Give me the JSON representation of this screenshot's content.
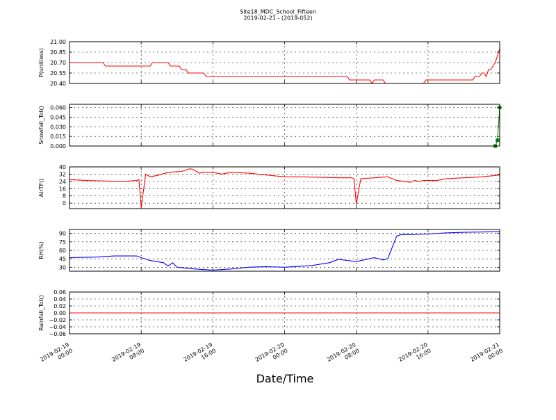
{
  "figure": {
    "title_line1": "Site18_MDC_School_Fifteen",
    "title_line2": "2019-02-21 - (2019-052)",
    "xlabel": "Date/Time",
    "xticks": [
      {
        "t": 0,
        "line1": "2019-02-19",
        "line2": "00:00"
      },
      {
        "t": 8,
        "line1": "2019-02-19",
        "line2": "08:00"
      },
      {
        "t": 16,
        "line1": "2019-02-19",
        "line2": "16:00"
      },
      {
        "t": 24,
        "line1": "2019-02-20",
        "line2": "00:00"
      },
      {
        "t": 32,
        "line1": "2019-02-20",
        "line2": "08:00"
      },
      {
        "t": 40,
        "line1": "2019-02-20",
        "line2": "16:00"
      },
      {
        "t": 48,
        "line1": "2019-02-21",
        "line2": "00:00"
      }
    ]
  },
  "chart_data": [
    {
      "type": "line",
      "ylabel": "P(unitless)",
      "ylim": [
        20.4,
        21.0
      ],
      "yticks": [
        "20.40",
        "20.55",
        "20.70",
        "20.85",
        "21.00"
      ],
      "grid": true,
      "series": [
        {
          "color": "#ff0000",
          "x": [
            "2019-02-19 00:00",
            "2019-02-19 03:45",
            "2019-02-19 04:00",
            "2019-02-19 09:00",
            "2019-02-19 09:15",
            "2019-02-19 11:00",
            "2019-02-19 11:15",
            "2019-02-19 12:15",
            "2019-02-19 12:30",
            "2019-02-19 13:00",
            "2019-02-19 13:15",
            "2019-02-19 15:00",
            "2019-02-19 15:15",
            "2019-02-20 07:00",
            "2019-02-20 07:15",
            "2019-02-20 09:30",
            "2019-02-20 09:45",
            "2019-02-20 10:00",
            "2019-02-20 11:00",
            "2019-02-20 11:15",
            "2019-02-20 15:30",
            "2019-02-20 15:45",
            "2019-02-20 21:00",
            "2019-02-20 21:15",
            "2019-02-20 21:45",
            "2019-02-20 22:00",
            "2019-02-20 22:15",
            "2019-02-20 22:30",
            "2019-02-20 22:45",
            "2019-02-20 23:00",
            "2019-02-20 23:30",
            "2019-02-21 00:00"
          ],
          "y": [
            20.7,
            20.7,
            20.65,
            20.65,
            20.7,
            20.7,
            20.65,
            20.65,
            20.6,
            20.6,
            20.55,
            20.55,
            20.5,
            20.5,
            20.45,
            20.45,
            20.4,
            20.45,
            20.45,
            20.4,
            20.4,
            20.45,
            20.45,
            20.5,
            20.5,
            20.55,
            20.55,
            20.5,
            20.6,
            20.6,
            20.7,
            20.9
          ]
        }
      ]
    },
    {
      "type": "line",
      "ylabel": "Snowfall_Tot()",
      "ylim": [
        0.0,
        0.065
      ],
      "yticks": [
        "0.000",
        "0.015",
        "0.030",
        "0.045",
        "0.060"
      ],
      "grid": true,
      "series": [
        {
          "color": "#008000",
          "marker": "square",
          "x": [
            "2019-02-19 00:00",
            "2019-02-20 23:30",
            "2019-02-20 23:45",
            "2019-02-21 00:00"
          ],
          "y": [
            0.0,
            0.0,
            0.009,
            0.06
          ]
        }
      ]
    },
    {
      "type": "line",
      "ylabel": "AirTF()",
      "ylim": [
        -6,
        40
      ],
      "yticks": [
        "0",
        "8",
        "16",
        "24",
        "32",
        "40"
      ],
      "grid": true,
      "series": [
        {
          "color": "#ff0000",
          "x": [
            "2019-02-19 00:00",
            "2019-02-19 02:00",
            "2019-02-19 06:00",
            "2019-02-19 07:30",
            "2019-02-19 07:45",
            "2019-02-19 08:00",
            "2019-02-19 08:30",
            "2019-02-19 09:00",
            "2019-02-19 10:00",
            "2019-02-19 11:00",
            "2019-02-19 12:30",
            "2019-02-19 13:30",
            "2019-02-19 14:00",
            "2019-02-19 14:30",
            "2019-02-19 15:00",
            "2019-02-19 16:00",
            "2019-02-19 17:00",
            "2019-02-19 18:00",
            "2019-02-19 20:00",
            "2019-02-19 22:00",
            "2019-02-20 00:00",
            "2019-02-20 02:00",
            "2019-02-20 06:00",
            "2019-02-20 07:30",
            "2019-02-20 07:45",
            "2019-02-20 08:00",
            "2019-02-20 08:30",
            "2019-02-20 10:00",
            "2019-02-20 11:30",
            "2019-02-20 12:30",
            "2019-02-20 13:30",
            "2019-02-20 14:00",
            "2019-02-20 14:30",
            "2019-02-20 15:00",
            "2019-02-20 15:30",
            "2019-02-20 16:00",
            "2019-02-20 17:00",
            "2019-02-20 18:00",
            "2019-02-20 20:00",
            "2019-02-20 22:00",
            "2019-02-21 00:00"
          ],
          "y": [
            26,
            25,
            24,
            25,
            26,
            -5,
            32,
            29,
            31,
            34,
            35,
            38,
            36,
            33,
            34,
            34,
            32,
            34,
            33,
            31,
            29,
            29,
            28,
            28,
            27,
            -1,
            27,
            28,
            29,
            25,
            24,
            23,
            25,
            24,
            25,
            25,
            25,
            27,
            28,
            29,
            31
          ]
        }
      ]
    },
    {
      "type": "line",
      "ylabel": "RH(%)",
      "ylim": [
        23,
        97
      ],
      "yticks": [
        "30",
        "45",
        "60",
        "75",
        "90"
      ],
      "grid": true,
      "series": [
        {
          "color": "#0000ff",
          "x": [
            "2019-02-19 00:00",
            "2019-02-19 03:00",
            "2019-02-19 05:00",
            "2019-02-19 07:30",
            "2019-02-19 08:00",
            "2019-02-19 09:00",
            "2019-02-19 10:30",
            "2019-02-19 11:00",
            "2019-02-19 11:30",
            "2019-02-19 12:00",
            "2019-02-19 14:00",
            "2019-02-19 16:00",
            "2019-02-19 18:00",
            "2019-02-19 20:00",
            "2019-02-19 22:00",
            "2019-02-20 00:00",
            "2019-02-20 03:00",
            "2019-02-20 05:00",
            "2019-02-20 06:00",
            "2019-02-20 08:00",
            "2019-02-20 10:00",
            "2019-02-20 11:00",
            "2019-02-20 11:30",
            "2019-02-20 12:30",
            "2019-02-20 13:00",
            "2019-02-20 14:00",
            "2019-02-20 16:00",
            "2019-02-20 18:00",
            "2019-02-20 20:00",
            "2019-02-21 00:00"
          ],
          "y": [
            47,
            48,
            50,
            50,
            47,
            42,
            38,
            32,
            38,
            30,
            27,
            25,
            27,
            30,
            31,
            30,
            33,
            38,
            44,
            40,
            47,
            43,
            45,
            85,
            88,
            88,
            89,
            91,
            92,
            93
          ]
        }
      ]
    },
    {
      "type": "line",
      "ylabel": "Rainfall_Tot()",
      "ylim": [
        -0.06,
        0.06
      ],
      "yticks": [
        "−0.06",
        "−0.04",
        "−0.02",
        "0.00",
        "0.02",
        "0.04",
        "0.06"
      ],
      "grid": true,
      "series": [
        {
          "color": "#ff0000",
          "x": [
            "2019-02-19 00:00",
            "2019-02-21 00:00"
          ],
          "y": [
            0.0,
            0.0
          ]
        }
      ]
    }
  ]
}
